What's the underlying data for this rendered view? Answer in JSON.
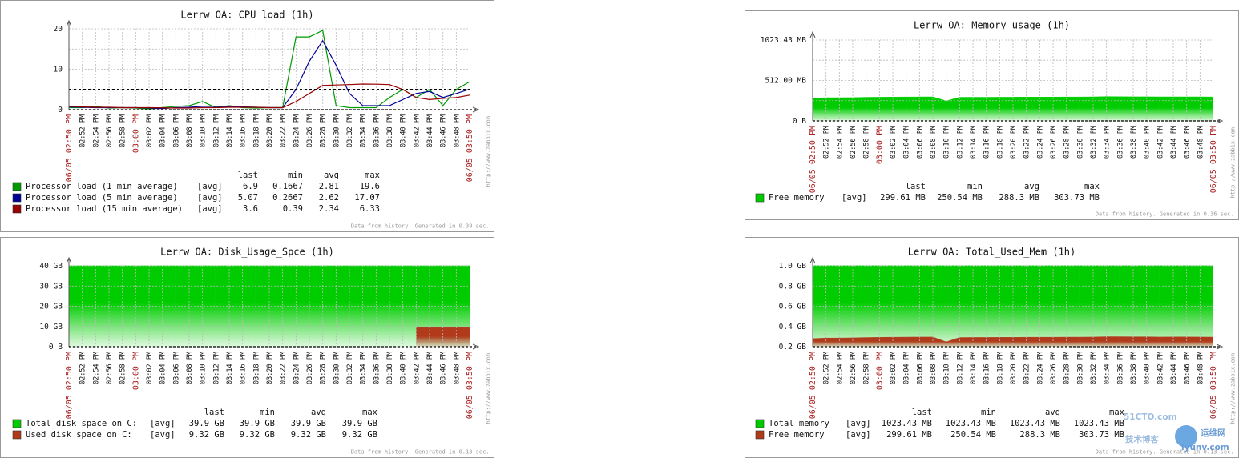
{
  "chart_data": [
    {
      "type": "line",
      "title": "Lerrw OA: CPU load (1h)",
      "categories": [
        "06/05 02:50 PM",
        "02:52 PM",
        "02:54 PM",
        "02:56 PM",
        "02:58 PM",
        "03:00 PM",
        "03:02 PM",
        "03:04 PM",
        "03:06 PM",
        "03:08 PM",
        "03:10 PM",
        "03:12 PM",
        "03:14 PM",
        "03:16 PM",
        "03:18 PM",
        "03:20 PM",
        "03:22 PM",
        "03:24 PM",
        "03:26 PM",
        "03:28 PM",
        "03:30 PM",
        "03:32 PM",
        "03:34 PM",
        "03:36 PM",
        "03:38 PM",
        "03:40 PM",
        "03:42 PM",
        "03:44 PM",
        "03:46 PM",
        "03:48 PM",
        "06/05 03:50 PM"
      ],
      "ylim": [
        0,
        20
      ],
      "yticks": [
        0,
        10,
        20
      ],
      "minor_ticks": [
        5,
        15
      ],
      "threshold": 5,
      "legend_columns": [
        "last",
        "min",
        "avg",
        "max"
      ],
      "series": [
        {
          "name": "Processor load (1 min average)",
          "color": "#009900",
          "func": "[avg]",
          "stats": [
            "6.9",
            "0.1667",
            "2.81",
            "19.6"
          ],
          "values": [
            0.5,
            0.5,
            0.8,
            0.4,
            0.5,
            0.4,
            0.1667,
            0.5,
            0.8,
            1.0,
            2.0,
            0.5,
            1.0,
            0.5,
            0.4,
            0.5,
            0.5,
            18.0,
            18.0,
            19.6,
            1.0,
            0.5,
            0.5,
            0.5,
            3.0,
            5.0,
            3.0,
            5.0,
            1.0,
            5.0,
            6.9
          ]
        },
        {
          "name": "Processor load (5 min average)",
          "color": "#000099",
          "func": "[avg]",
          "stats": [
            "5.07",
            "0.2667",
            "2.62",
            "17.07"
          ],
          "values": [
            0.7,
            0.6,
            0.5,
            0.5,
            0.5,
            0.5,
            0.4,
            0.2667,
            0.5,
            0.6,
            0.8,
            0.8,
            0.8,
            0.7,
            0.6,
            0.5,
            0.5,
            5.0,
            12.0,
            17.07,
            11.0,
            4.0,
            1.0,
            1.0,
            1.0,
            2.5,
            4.0,
            4.5,
            3.0,
            4.0,
            5.07
          ]
        },
        {
          "name": "Processor load (15 min average)",
          "color": "#990000",
          "func": "[avg]",
          "stats": [
            "3.6",
            "0.39",
            "2.34",
            "6.33"
          ],
          "values": [
            0.8,
            0.7,
            0.6,
            0.6,
            0.5,
            0.5,
            0.5,
            0.45,
            0.39,
            0.4,
            0.5,
            0.5,
            0.6,
            0.6,
            0.6,
            0.5,
            0.5,
            2.0,
            4.0,
            6.0,
            6.1,
            6.2,
            6.33,
            6.3,
            6.2,
            5.0,
            3.0,
            2.5,
            2.8,
            3.0,
            3.6
          ]
        }
      ],
      "footer": "Data from history. Generated in 0.39 sec.",
      "side_text": "http://www.zabbix.com"
    },
    {
      "type": "area",
      "title": "Lerrw OA: Memory usage (1h)",
      "categories": [
        "06/05 02:50 PM",
        "02:52 PM",
        "02:54 PM",
        "02:56 PM",
        "02:58 PM",
        "03:00 PM",
        "03:02 PM",
        "03:04 PM",
        "03:06 PM",
        "03:08 PM",
        "03:10 PM",
        "03:12 PM",
        "03:14 PM",
        "03:16 PM",
        "03:18 PM",
        "03:20 PM",
        "03:22 PM",
        "03:24 PM",
        "03:26 PM",
        "03:28 PM",
        "03:30 PM",
        "03:32 PM",
        "03:34 PM",
        "03:36 PM",
        "03:38 PM",
        "03:40 PM",
        "03:42 PM",
        "03:44 PM",
        "03:46 PM",
        "03:48 PM",
        "06/05 03:50 PM"
      ],
      "ylim": [
        0,
        1023.43
      ],
      "yticks": [
        {
          "value": 0,
          "label": "0 B"
        },
        {
          "value": 512,
          "label": "512.00 MB"
        },
        {
          "value": 1023.43,
          "label": "1023.43 MB"
        }
      ],
      "minor_ticks": [
        256,
        768
      ],
      "legend_columns": [
        "last",
        "min",
        "avg",
        "max"
      ],
      "series": [
        {
          "name": "Free memory",
          "color": "#00cc00",
          "func": "[avg]",
          "stats": [
            "299.61 MB",
            "250.54 MB",
            "288.3 MB",
            "303.73 MB"
          ],
          "values": [
            285,
            290,
            290,
            292,
            295,
            297,
            298,
            299,
            300,
            300,
            250.54,
            295,
            296,
            296,
            297,
            297,
            298,
            298,
            298,
            299,
            299,
            300,
            303.73,
            303,
            302,
            302,
            300,
            301,
            301,
            300,
            299.61
          ]
        }
      ],
      "footer": "Data from history. Generated in 0.36 sec.",
      "side_text": "http://www.zabbix.com"
    },
    {
      "type": "area",
      "title": "Lerrw OA: Disk_Usage_Spce (1h)",
      "categories": [
        "06/05 02:50 PM",
        "02:52 PM",
        "02:54 PM",
        "02:56 PM",
        "02:58 PM",
        "03:00 PM",
        "03:02 PM",
        "03:04 PM",
        "03:06 PM",
        "03:08 PM",
        "03:10 PM",
        "03:12 PM",
        "03:14 PM",
        "03:16 PM",
        "03:18 PM",
        "03:20 PM",
        "03:22 PM",
        "03:24 PM",
        "03:26 PM",
        "03:28 PM",
        "03:30 PM",
        "03:32 PM",
        "03:34 PM",
        "03:36 PM",
        "03:38 PM",
        "03:40 PM",
        "03:42 PM",
        "03:44 PM",
        "03:46 PM",
        "03:48 PM",
        "06/05 03:50 PM"
      ],
      "ylim": [
        0,
        40
      ],
      "yticks": [
        {
          "value": 0,
          "label": "0 B"
        },
        {
          "value": 10,
          "label": "10 GB"
        },
        {
          "value": 20,
          "label": "20 GB"
        },
        {
          "value": 30,
          "label": "30 GB"
        },
        {
          "value": 40,
          "label": "40 GB"
        }
      ],
      "legend_columns": [
        "last",
        "min",
        "avg",
        "max"
      ],
      "series": [
        {
          "name": "Total disk space on C:",
          "color": "#00cc00",
          "func": "[avg]",
          "stats": [
            "39.9 GB",
            "39.9 GB",
            "39.9 GB",
            "39.9 GB"
          ],
          "values": [
            39.9,
            39.9,
            39.9,
            39.9,
            39.9,
            39.9,
            39.9,
            39.9,
            39.9,
            39.9,
            39.9,
            39.9,
            39.9,
            39.9,
            39.9,
            39.9,
            39.9,
            39.9,
            39.9,
            39.9,
            39.9,
            39.9,
            39.9,
            39.9,
            39.9,
            39.9,
            39.9,
            39.9,
            39.9,
            39.9,
            39.9
          ]
        },
        {
          "name": "Used disk space on C:",
          "color": "#b03a1a",
          "func": "[avg]",
          "stats": [
            "9.32 GB",
            "9.32 GB",
            "9.32 GB",
            "9.32 GB"
          ],
          "values": [
            null,
            null,
            null,
            null,
            null,
            null,
            null,
            null,
            null,
            null,
            null,
            null,
            null,
            null,
            null,
            null,
            null,
            null,
            null,
            null,
            null,
            null,
            null,
            null,
            null,
            null,
            9.32,
            9.32,
            9.32,
            9.32,
            9.32
          ]
        }
      ],
      "footer": "Data from history. Generated in 0.13 sec.",
      "side_text": "http://www.zabbix.com"
    },
    {
      "type": "area",
      "title": "Lerrw OA: Total_Used_Mem (1h)",
      "categories": [
        "06/05 02:50 PM",
        "02:52 PM",
        "02:54 PM",
        "02:56 PM",
        "02:58 PM",
        "03:00 PM",
        "03:02 PM",
        "03:04 PM",
        "03:06 PM",
        "03:08 PM",
        "03:10 PM",
        "03:12 PM",
        "03:14 PM",
        "03:16 PM",
        "03:18 PM",
        "03:20 PM",
        "03:22 PM",
        "03:24 PM",
        "03:26 PM",
        "03:28 PM",
        "03:30 PM",
        "03:32 PM",
        "03:34 PM",
        "03:36 PM",
        "03:38 PM",
        "03:40 PM",
        "03:42 PM",
        "03:44 PM",
        "03:46 PM",
        "03:48 PM",
        "06/05 03:50 PM"
      ],
      "ylim": [
        0.2,
        1.0
      ],
      "yticks": [
        {
          "value": 0.2,
          "label": "0.2 GB"
        },
        {
          "value": 0.4,
          "label": "0.4 GB"
        },
        {
          "value": 0.6,
          "label": "0.6 GB"
        },
        {
          "value": 0.8,
          "label": "0.8 GB"
        },
        {
          "value": 1.0,
          "label": "1.0 GB"
        }
      ],
      "legend_columns": [
        "last",
        "min",
        "avg",
        "max"
      ],
      "series": [
        {
          "name": "Total memory",
          "color": "#00cc00",
          "func": "[avg]",
          "stats": [
            "1023.43 MB",
            "1023.43 MB",
            "1023.43 MB",
            "1023.43 MB"
          ],
          "values": [
            0.9994,
            0.9994,
            0.9994,
            0.9994,
            0.9994,
            0.9994,
            0.9994,
            0.9994,
            0.9994,
            0.9994,
            0.9994,
            0.9994,
            0.9994,
            0.9994,
            0.9994,
            0.9994,
            0.9994,
            0.9994,
            0.9994,
            0.9994,
            0.9994,
            0.9994,
            0.9994,
            0.9994,
            0.9994,
            0.9994,
            0.9994,
            0.9994,
            0.9994,
            0.9994,
            0.9994
          ]
        },
        {
          "name": "Free memory",
          "color": "#b03a1a",
          "func": "[avg]",
          "stats": [
            "299.61 MB",
            "250.54 MB",
            "288.3 MB",
            "303.73 MB"
          ],
          "values": [
            0.278,
            0.283,
            0.283,
            0.285,
            0.288,
            0.29,
            0.291,
            0.292,
            0.293,
            0.293,
            0.2447,
            0.288,
            0.289,
            0.289,
            0.29,
            0.29,
            0.291,
            0.291,
            0.291,
            0.292,
            0.292,
            0.293,
            0.2966,
            0.296,
            0.295,
            0.295,
            0.293,
            0.294,
            0.294,
            0.293,
            0.2926
          ]
        }
      ],
      "footer": "Data from history. Generated in 0.13 sec.",
      "side_text": "http://www.zabbix.com"
    }
  ],
  "watermark": {
    "brand": "51CTO.com",
    "blog": "技术博客",
    "site_cn": "运维网",
    "site": "iyunv.com"
  }
}
